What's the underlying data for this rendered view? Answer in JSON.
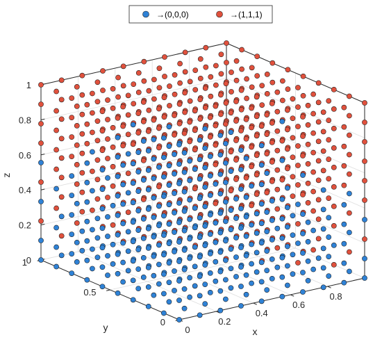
{
  "chart_data": {
    "type": "scatter",
    "projection": "3d",
    "grid": true,
    "legend_placement": "top-center",
    "xlabel": "x",
    "ylabel": "y",
    "zlabel": "z",
    "xlim": [
      0,
      1
    ],
    "ylim": [
      0,
      1
    ],
    "zlim": [
      0,
      1
    ],
    "xticks": [
      "0",
      "0.2",
      "0.4",
      "0.6",
      "0.8"
    ],
    "yticks": [
      "0",
      "0.5",
      "1"
    ],
    "zticks": [
      "0",
      "0.2",
      "0.4",
      "0.6",
      "0.8",
      "1"
    ],
    "grid_points_per_axis": 10,
    "grid_values": [
      0,
      0.111,
      0.222,
      0.333,
      0.444,
      0.556,
      0.667,
      0.778,
      0.889,
      1
    ],
    "series": [
      {
        "name": "→(0,0,0)",
        "color": "#2f82d6",
        "rule": "points of the 10×10×10 grid that converge to (0,0,0)"
      },
      {
        "name": "→(1,1,1)",
        "color": "#e0513d",
        "rule": "points of the 10×10×10 grid that converge to (1,1,1)"
      }
    ]
  }
}
